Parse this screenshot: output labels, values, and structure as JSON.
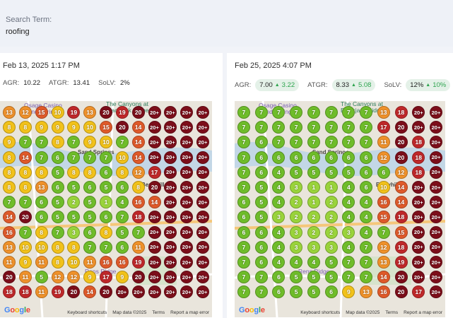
{
  "search": {
    "label": "Search Term:",
    "value": "roofing"
  },
  "panels": [
    {
      "date": "Feb 13, 2025 1:17 PM",
      "metrics": [
        {
          "label": "AGR:",
          "value": "10.22"
        },
        {
          "label": "ATGR:",
          "value": "13.41"
        },
        {
          "label": "SoLV:",
          "value": "2%"
        }
      ],
      "grid": [
        [
          "13",
          "12",
          "15",
          "10",
          "19",
          "13",
          "20",
          "19",
          "20",
          "20+",
          "20+",
          "20+",
          "20+"
        ],
        [
          "8",
          "8",
          "9",
          "9",
          "9",
          "10",
          "15",
          "20",
          "14",
          "20+",
          "20+",
          "20+",
          "20+"
        ],
        [
          "9",
          "7",
          "7",
          "8",
          "7",
          "9",
          "10",
          "7",
          "14",
          "20+",
          "20+",
          "20+",
          "20+"
        ],
        [
          "8",
          "14",
          "7",
          "6",
          "7",
          "7",
          "7",
          "10",
          "14",
          "20+",
          "20+",
          "20+",
          "20+"
        ],
        [
          "8",
          "8",
          "8",
          "5",
          "8",
          "8",
          "6",
          "8",
          "12",
          "17",
          "20+",
          "20+",
          "20+"
        ],
        [
          "8",
          "8",
          "13",
          "6",
          "5",
          "6",
          "5",
          "6",
          "8",
          "20",
          "20+",
          "20+",
          "20+"
        ],
        [
          "7",
          "7",
          "6",
          "5",
          "2",
          "5",
          "1",
          "4",
          "16",
          "14",
          "20+",
          "20+",
          "20+"
        ],
        [
          "14",
          "20",
          "6",
          "5",
          "5",
          "5",
          "6",
          "7",
          "18",
          "20+",
          "20+",
          "20+",
          "20+"
        ],
        [
          "16",
          "7",
          "8",
          "7",
          "3",
          "6",
          "8",
          "5",
          "7",
          "20+",
          "20+",
          "20+",
          "20+"
        ],
        [
          "13",
          "10",
          "10",
          "8",
          "8",
          "7",
          "7",
          "6",
          "11",
          "20+",
          "20+",
          "20+",
          "20+"
        ],
        [
          "11",
          "9",
          "11",
          "8",
          "10",
          "11",
          "16",
          "16",
          "19",
          "20+",
          "20+",
          "20+",
          "20+"
        ],
        [
          "20",
          "11",
          "5",
          "12",
          "12",
          "9",
          "17",
          "9",
          "20",
          "20+",
          "20+",
          "20+",
          "20+"
        ],
        [
          "18",
          "18",
          "11",
          "19",
          "20",
          "14",
          "20",
          "20+",
          "20+",
          "20+",
          "20+",
          "20+",
          "20+"
        ]
      ],
      "pois": [
        {
          "text": "Osage Casino\nSand Springs",
          "color": "purple"
        },
        {
          "text": "The Canyons at\nBlackjack Ridge",
          "color": "green"
        },
        {
          "text": "Sand Springs",
          "color": "dark"
        },
        {
          "text": "Berryhill",
          "color": "dark"
        },
        {
          "text": "Rens Ridge",
          "color": "purple"
        }
      ],
      "attribution": [
        "Keyboard shortcuts",
        "Map data ©2025",
        "Terms",
        "Report a map error"
      ],
      "logo": "Google"
    },
    {
      "date": "Feb 25, 2025 4:07 PM",
      "metrics": [
        {
          "label": "AGR:",
          "value": "7.00",
          "delta": "3.22",
          "arrow": "▲"
        },
        {
          "label": "ATGR:",
          "value": "8.33",
          "delta": "5.08",
          "arrow": "▲"
        },
        {
          "label": "SoLV:",
          "value": "12%",
          "delta": "10%",
          "arrow": "▲"
        }
      ],
      "grid": [
        [
          "7",
          "7",
          "7",
          "7",
          "7",
          "7",
          "7",
          "7",
          "13",
          "18",
          "20+",
          "20+"
        ],
        [
          "7",
          "7",
          "7",
          "7",
          "7",
          "7",
          "7",
          "7",
          "17",
          "20",
          "20+",
          "20+"
        ],
        [
          "7",
          "6",
          "7",
          "7",
          "7",
          "7",
          "7",
          "7",
          "11",
          "20",
          "18",
          "20+"
        ],
        [
          "7",
          "6",
          "6",
          "6",
          "6",
          "6",
          "6",
          "6",
          "12",
          "20",
          "18",
          "20+"
        ],
        [
          "7",
          "6",
          "4",
          "5",
          "5",
          "5",
          "5",
          "6",
          "6",
          "12",
          "18",
          "20+"
        ],
        [
          "7",
          "5",
          "4",
          "3",
          "1",
          "1",
          "4",
          "6",
          "10",
          "14",
          "20+",
          "20+"
        ],
        [
          "6",
          "5",
          "4",
          "2",
          "1",
          "2",
          "4",
          "4",
          "16",
          "14",
          "20+",
          "20+"
        ],
        [
          "6",
          "5",
          "3",
          "2",
          "2",
          "2",
          "4",
          "4",
          "15",
          "18",
          "20+",
          "20+"
        ],
        [
          "6",
          "6",
          "4",
          "3",
          "2",
          "2",
          "3",
          "4",
          "7",
          "15",
          "20+",
          "20+"
        ],
        [
          "7",
          "6",
          "4",
          "3",
          "3",
          "3",
          "4",
          "7",
          "12",
          "18",
          "20+",
          "20+"
        ],
        [
          "7",
          "6",
          "4",
          "4",
          "4",
          "5",
          "7",
          "7",
          "13",
          "19",
          "20+",
          "20+"
        ],
        [
          "7",
          "7",
          "6",
          "5",
          "5",
          "5",
          "7",
          "7",
          "14",
          "20",
          "20+",
          "20+"
        ],
        [
          "7",
          "7",
          "6",
          "5",
          "5",
          "6",
          "9",
          "13",
          "16",
          "20",
          "17",
          "20+"
        ]
      ],
      "pois": [
        {
          "text": "Osage Casino\nSand Springs",
          "color": "purple"
        },
        {
          "text": "The Canyons at\nBlackjack Ridge",
          "color": "green"
        },
        {
          "text": "Sand Springs",
          "color": "dark"
        },
        {
          "text": "Berryhill",
          "color": "dark"
        },
        {
          "text": "Rens Ridge",
          "color": "purple"
        }
      ],
      "attribution": [
        "Keyboard shortcuts",
        "Map data ©2025",
        "Terms",
        "Report a map error"
      ],
      "logo": "Google"
    }
  ],
  "colors": {
    "green_light": "#9ad43b",
    "green": "#6fbd2a",
    "yellow": "#f2c21a",
    "orange": "#f0922b",
    "red_orange": "#e05a2a",
    "red": "#c0282a",
    "dark_red": "#7d0e1a",
    "chip_bg": "#e4f1e8",
    "delta_green": "#2ea44f"
  }
}
